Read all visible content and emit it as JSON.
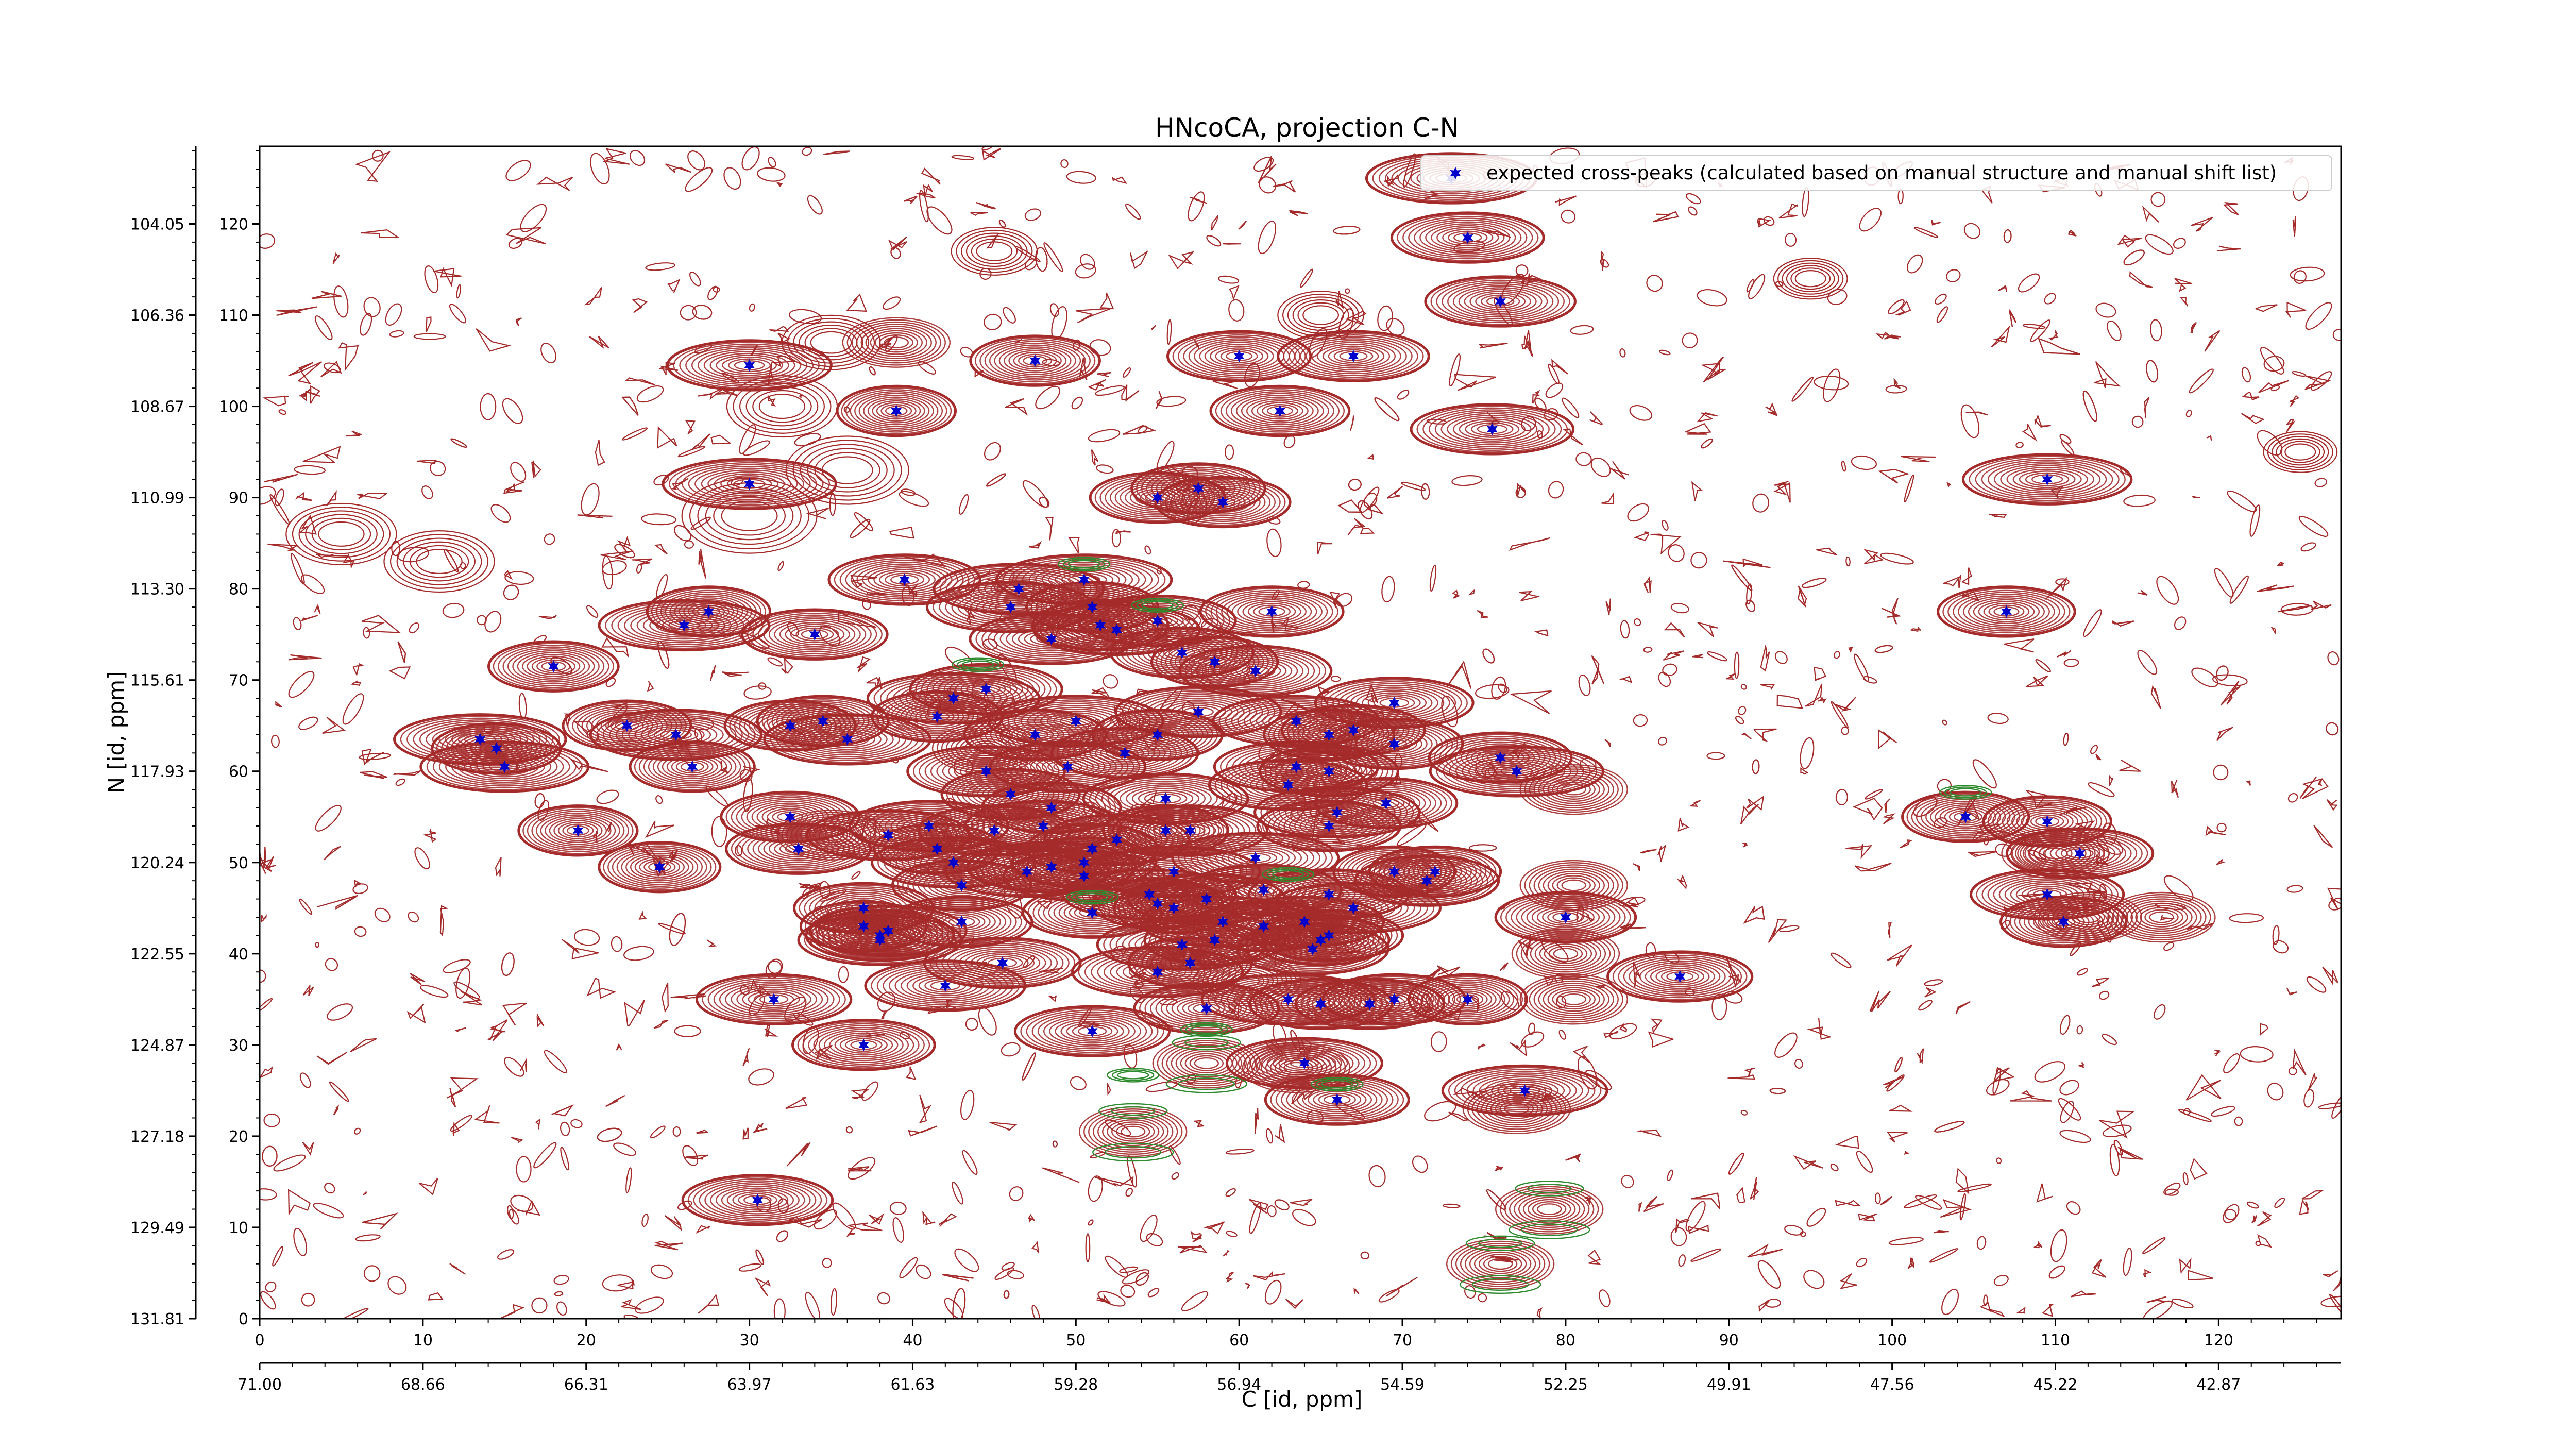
{
  "chart_data": {
    "type": "scatter",
    "title": "HNcoCA, projection C-N",
    "xlabel": "C [id, ppm]",
    "ylabel": "N [id, ppm]",
    "x_index_ticks": [
      "0",
      "10",
      "20",
      "30",
      "40",
      "50",
      "60",
      "70",
      "80",
      "90",
      "100",
      "110",
      "120"
    ],
    "x_index_range": [
      0,
      127.5
    ],
    "x_ppm_ticks": [
      "71.00",
      "68.66",
      "66.31",
      "63.97",
      "61.63",
      "59.28",
      "56.94",
      "54.59",
      "52.25",
      "49.91",
      "47.56",
      "45.22",
      "42.87"
    ],
    "y_index_ticks": [
      "0",
      "10",
      "20",
      "30",
      "40",
      "50",
      "60",
      "70",
      "80",
      "90",
      "100",
      "110",
      "120"
    ],
    "y_index_range": [
      0,
      128.5
    ],
    "y_ppm_ticks": [
      "131.81",
      "129.49",
      "127.18",
      "124.87",
      "122.55",
      "120.24",
      "117.93",
      "115.61",
      "113.30",
      "110.99",
      "108.67",
      "106.36",
      "104.05"
    ],
    "legend": {
      "label": "expected cross-peaks (calculated based on manual structure and manual shift list)",
      "placement": "top-right"
    },
    "colors": {
      "positive_contour": "#a52a2a",
      "negative_contour": "#2e8b2e",
      "peak_marker": "#0000cc"
    },
    "series": [
      {
        "marker": "star",
        "points": [
          [
            73.0,
            125.0
          ],
          [
            74.0,
            118.5
          ],
          [
            76.0,
            111.5
          ],
          [
            30.0,
            104.5
          ],
          [
            47.5,
            105.0
          ],
          [
            60.0,
            105.5
          ],
          [
            67.0,
            105.5
          ],
          [
            39.0,
            99.5
          ],
          [
            62.5,
            99.5
          ],
          [
            75.5,
            97.5
          ],
          [
            30.0,
            91.5
          ],
          [
            55.0,
            90.0
          ],
          [
            57.5,
            91.0
          ],
          [
            59.0,
            89.5
          ],
          [
            109.5,
            92.0
          ],
          [
            39.5,
            81.0
          ],
          [
            46.5,
            80.0
          ],
          [
            46.0,
            78.0
          ],
          [
            50.5,
            81.0
          ],
          [
            51.0,
            78.0
          ],
          [
            51.5,
            76.0
          ],
          [
            52.5,
            75.5
          ],
          [
            55.0,
            76.5
          ],
          [
            48.5,
            74.5
          ],
          [
            27.5,
            77.5
          ],
          [
            26.0,
            76.0
          ],
          [
            34.0,
            75.0
          ],
          [
            62.0,
            77.5
          ],
          [
            107.0,
            77.5
          ],
          [
            56.5,
            73.0
          ],
          [
            58.5,
            72.0
          ],
          [
            61.0,
            71.0
          ],
          [
            18.0,
            71.5
          ],
          [
            44.5,
            69.0
          ],
          [
            42.5,
            68.0
          ],
          [
            69.5,
            67.5
          ],
          [
            41.5,
            66.0
          ],
          [
            32.5,
            65.0
          ],
          [
            34.5,
            65.5
          ],
          [
            36.0,
            63.5
          ],
          [
            50.0,
            65.5
          ],
          [
            55.0,
            64.0
          ],
          [
            57.5,
            66.5
          ],
          [
            47.5,
            64.0
          ],
          [
            63.5,
            65.5
          ],
          [
            65.5,
            64.0
          ],
          [
            67.0,
            64.5
          ],
          [
            69.5,
            63.0
          ],
          [
            22.5,
            65.0
          ],
          [
            25.5,
            64.0
          ],
          [
            13.5,
            63.5
          ],
          [
            14.5,
            62.5
          ],
          [
            15.0,
            60.5
          ],
          [
            26.5,
            60.5
          ],
          [
            44.5,
            60.0
          ],
          [
            49.5,
            60.5
          ],
          [
            53.0,
            62.0
          ],
          [
            63.5,
            60.5
          ],
          [
            63.0,
            58.5
          ],
          [
            65.5,
            60.0
          ],
          [
            76.0,
            61.5
          ],
          [
            77.0,
            60.0
          ],
          [
            46.0,
            57.5
          ],
          [
            48.5,
            56.0
          ],
          [
            55.5,
            57.0
          ],
          [
            69.0,
            56.5
          ],
          [
            32.5,
            55.0
          ],
          [
            19.5,
            53.5
          ],
          [
            38.5,
            53.0
          ],
          [
            41.0,
            54.0
          ],
          [
            45.0,
            53.5
          ],
          [
            48.0,
            54.0
          ],
          [
            51.0,
            51.5
          ],
          [
            52.5,
            52.5
          ],
          [
            55.5,
            53.5
          ],
          [
            57.0,
            53.5
          ],
          [
            65.5,
            54.0
          ],
          [
            66.0,
            55.5
          ],
          [
            33.0,
            51.5
          ],
          [
            41.5,
            51.5
          ],
          [
            42.5,
            50.0
          ],
          [
            24.5,
            49.5
          ],
          [
            47.0,
            49.0
          ],
          [
            48.5,
            49.5
          ],
          [
            50.5,
            50.0
          ],
          [
            50.5,
            48.5
          ],
          [
            56.0,
            49.0
          ],
          [
            61.0,
            50.5
          ],
          [
            69.5,
            49.0
          ],
          [
            72.0,
            49.0
          ],
          [
            71.5,
            48.0
          ],
          [
            43.0,
            47.5
          ],
          [
            58.0,
            46.0
          ],
          [
            61.5,
            47.0
          ],
          [
            65.5,
            46.5
          ],
          [
            37.0,
            45.0
          ],
          [
            51.0,
            44.5
          ],
          [
            54.5,
            46.5
          ],
          [
            55.0,
            45.5
          ],
          [
            56.0,
            45.0
          ],
          [
            67.0,
            45.0
          ],
          [
            38.5,
            42.5
          ],
          [
            38.0,
            42.0
          ],
          [
            38.0,
            41.5
          ],
          [
            43.0,
            43.5
          ],
          [
            59.0,
            43.5
          ],
          [
            61.5,
            43.0
          ],
          [
            64.0,
            43.5
          ],
          [
            80.0,
            44.0
          ],
          [
            110.5,
            43.5
          ],
          [
            109.5,
            46.5
          ],
          [
            37.0,
            43.0
          ],
          [
            56.5,
            41.0
          ],
          [
            58.5,
            41.5
          ],
          [
            57.0,
            39.0
          ],
          [
            65.0,
            41.5
          ],
          [
            65.5,
            42.0
          ],
          [
            64.5,
            40.5
          ],
          [
            45.5,
            39.0
          ],
          [
            55.0,
            38.0
          ],
          [
            42.0,
            36.5
          ],
          [
            87.0,
            37.5
          ],
          [
            31.5,
            35.0
          ],
          [
            58.0,
            34.0
          ],
          [
            63.0,
            35.0
          ],
          [
            65.0,
            34.5
          ],
          [
            68.0,
            34.5
          ],
          [
            69.5,
            35.0
          ],
          [
            74.0,
            35.0
          ],
          [
            51.0,
            31.5
          ],
          [
            37.0,
            30.0
          ],
          [
            64.0,
            28.0
          ],
          [
            66.0,
            24.0
          ],
          [
            77.5,
            25.0
          ],
          [
            30.5,
            13.0
          ],
          [
            104.5,
            55.0
          ],
          [
            109.5,
            54.5
          ],
          [
            111.5,
            51.0
          ]
        ]
      }
    ]
  }
}
